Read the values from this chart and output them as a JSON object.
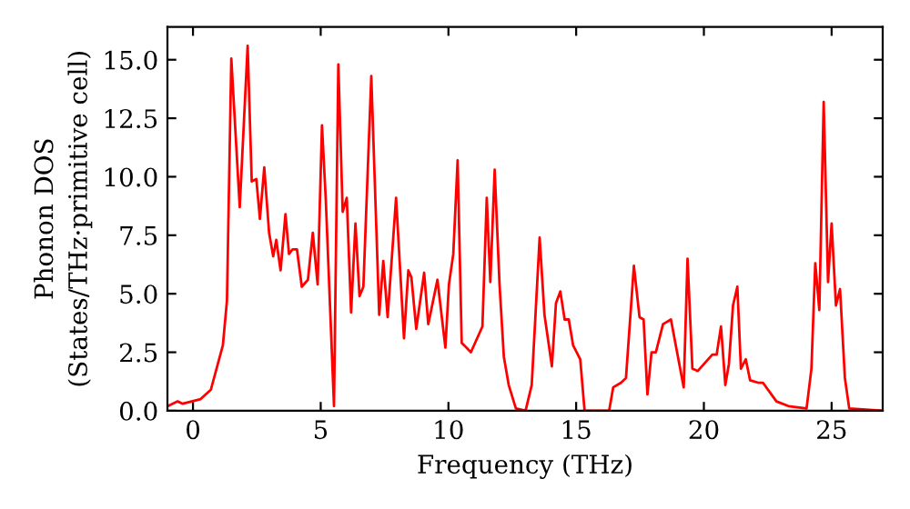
{
  "chart_data": {
    "type": "line",
    "xlabel": "Frequency (THz)",
    "ylabel": "Phonon DOS\n(States/THz·primitive cell)",
    "xlim": [
      -1,
      27
    ],
    "ylim": [
      0,
      16.4
    ],
    "xticks": [
      0,
      5,
      10,
      15,
      20,
      25
    ],
    "yticks": [
      {
        "value": 0,
        "label": "0.0"
      },
      {
        "value": 2.5,
        "label": "2.5"
      },
      {
        "value": 5,
        "label": "5.0"
      },
      {
        "value": 7.5,
        "label": "7.5"
      },
      {
        "value": 10,
        "label": "10.0"
      },
      {
        "value": 12.5,
        "label": "12.5"
      },
      {
        "value": 15,
        "label": "15.0"
      }
    ],
    "grid": false,
    "marker": "none",
    "line_style": "solid",
    "series": [
      {
        "color": "#ff0000",
        "x": [
          -0.98,
          -0.6,
          -0.4,
          0.3,
          0.7,
          1.17,
          1.33,
          1.5,
          1.83,
          2.14,
          2.3,
          2.48,
          2.62,
          2.79,
          2.98,
          3.14,
          3.26,
          3.43,
          3.62,
          3.76,
          3.9,
          4.07,
          4.26,
          4.5,
          4.69,
          4.88,
          5.05,
          5.2,
          5.52,
          5.69,
          5.86,
          6.02,
          6.19,
          6.36,
          6.52,
          6.67,
          6.98,
          7.29,
          7.45,
          7.62,
          7.95,
          8.26,
          8.43,
          8.55,
          8.74,
          9.05,
          9.21,
          9.57,
          9.88,
          10.02,
          10.19,
          10.36,
          10.52,
          10.88,
          11.33,
          11.5,
          11.64,
          11.81,
          12.0,
          12.17,
          12.36,
          12.64,
          13.02,
          13.26,
          13.57,
          13.76,
          14.05,
          14.21,
          14.38,
          14.55,
          14.71,
          14.88,
          15.16,
          15.33,
          16.29,
          16.45,
          16.76,
          16.95,
          17.26,
          17.48,
          17.64,
          17.79,
          17.95,
          18.12,
          18.4,
          18.71,
          19.21,
          19.36,
          19.55,
          19.76,
          20.33,
          20.5,
          20.67,
          20.84,
          20.98,
          21.14,
          21.31,
          21.45,
          21.64,
          21.81,
          22.12,
          22.31,
          22.84,
          23.31,
          24.02,
          24.21,
          24.36,
          24.52,
          24.69,
          24.86,
          25.0,
          25.17,
          25.33,
          25.52,
          25.69,
          27.0
        ],
        "values": [
          0.2,
          0.4,
          0.3,
          0.5,
          0.9,
          2.8,
          4.7,
          15.05,
          8.7,
          15.6,
          9.8,
          9.9,
          8.2,
          10.4,
          7.6,
          6.6,
          7.3,
          6.0,
          8.4,
          6.7,
          6.9,
          6.9,
          5.3,
          5.6,
          7.6,
          5.4,
          12.2,
          9.0,
          0.2,
          14.8,
          8.5,
          9.1,
          4.2,
          8.0,
          4.9,
          5.3,
          14.3,
          4.1,
          6.4,
          4.0,
          9.1,
          3.1,
          6.0,
          5.7,
          3.5,
          5.9,
          3.7,
          5.6,
          2.7,
          5.4,
          6.7,
          10.7,
          2.9,
          2.5,
          3.6,
          9.1,
          5.5,
          10.3,
          5.4,
          2.3,
          1.1,
          0.1,
          0,
          1.1,
          7.4,
          4.1,
          1.9,
          4.6,
          5.1,
          3.9,
          3.9,
          2.8,
          2.2,
          0,
          0,
          1.0,
          1.2,
          1.4,
          6.2,
          4.0,
          3.9,
          0.7,
          2.5,
          2.5,
          3.7,
          3.9,
          1.0,
          6.5,
          1.8,
          1.7,
          2.4,
          2.4,
          3.6,
          1.1,
          2.0,
          4.5,
          5.3,
          1.8,
          2.2,
          1.3,
          1.2,
          1.2,
          0.4,
          0.2,
          0.1,
          1.8,
          6.3,
          4.3,
          13.2,
          5.5,
          8.0,
          4.5,
          5.2,
          1.4,
          0.1,
          0
        ]
      }
    ]
  }
}
